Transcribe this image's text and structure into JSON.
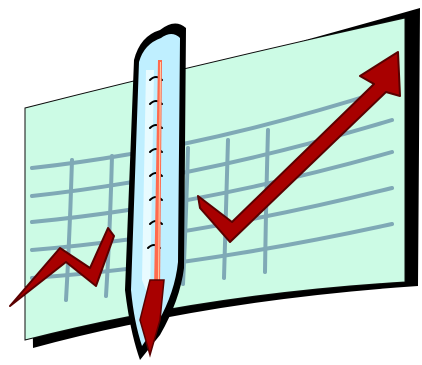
{
  "clipart": {
    "subject": "thermometer-over-rising-chart",
    "colors": {
      "background": "#ffffff",
      "board_fill": "#ccfbe5",
      "board_shadow": "#000000",
      "grid": "#7fa9b6",
      "arrow": "#a80000",
      "arrow_outline": "#5a0000",
      "thermometer_glass": "#bfefff",
      "thermometer_rim": "#000000",
      "mercury": "#ff6a4d",
      "mercury_light": "#ffd0a8"
    }
  }
}
